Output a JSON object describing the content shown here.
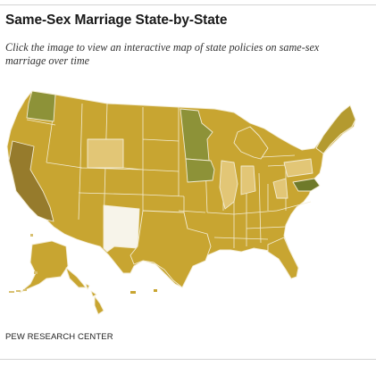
{
  "header": {
    "title": "Same-Sex Marriage State-by-State",
    "subtitle": "Click the image to view an interactive map of state policies on same-sex marriage over time"
  },
  "footer": {
    "source": "PEW RESEARCH CENTER"
  },
  "colors": {
    "base": "#c8a531",
    "base_dark": "#b9952a",
    "pale": "#e2c676",
    "green": "#8d9238",
    "brown": "#967b2c",
    "white": "#f7f4ea",
    "border": "#f3ecd3"
  }
}
